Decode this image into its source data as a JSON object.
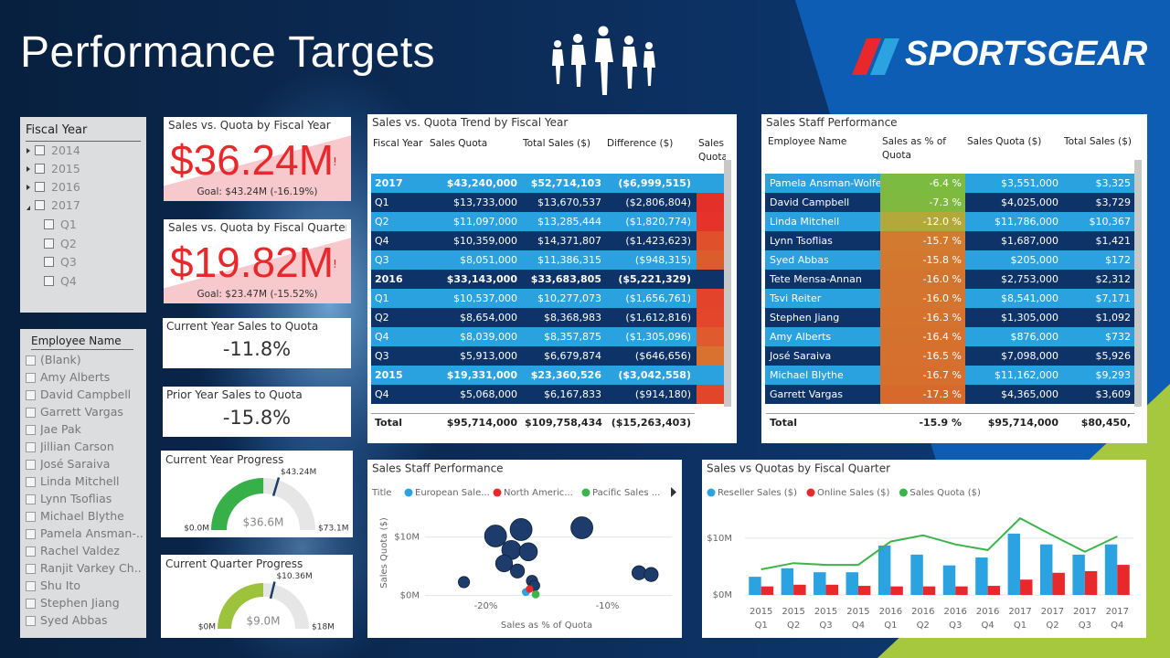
{
  "header": {
    "title": "Performance Targets",
    "logo": "SPORTSGEAR"
  },
  "fiscal_year_slicer": {
    "title": "Fiscal Year",
    "years": [
      "2014",
      "2015",
      "2016",
      "2017"
    ],
    "quarters": [
      "Q1",
      "Q2",
      "Q3",
      "Q4"
    ]
  },
  "kpi_cards": [
    {
      "title": "Sales vs. Quota by Fiscal Year",
      "value": "$36.24M",
      "flag": "!",
      "goal": "Goal: $43.24M (-16.19%)"
    },
    {
      "title": "Sales vs. Quota by Fiscal Quarter",
      "value": "$19.82M",
      "flag": "!",
      "goal": "Goal: $23.47M (-15.52%)"
    }
  ],
  "ratio_cards": [
    {
      "title": "Current Year Sales to Quota",
      "value": "-11.8%"
    },
    {
      "title": "Prior Year Sales to Quota",
      "value": "-15.8%"
    }
  ],
  "gauges": [
    {
      "title": "Current Year Progress",
      "min": 0,
      "max": 73.1,
      "value": 36.6,
      "target": 43.24,
      "min_label": "$0.0M",
      "max_label": "$73.1M",
      "value_label": "$36.6M",
      "target_label": "$43.24M",
      "color": "#37b04a"
    },
    {
      "title": "Current Quarter Progress",
      "min": 0,
      "max": 18,
      "value": 9.0,
      "target": 10.36,
      "min_label": "$0M",
      "max_label": "$18M",
      "value_label": "$9.0M",
      "target_label": "$10.36M",
      "color": "#9dc23c"
    }
  ],
  "employee_slicer": {
    "title": "Employee Name",
    "items": [
      "(Blank)",
      "Amy Alberts",
      "David Campbell",
      "Garrett Vargas",
      "Jae Pak",
      "Jillian Carson",
      "José Saraiva",
      "Linda Mitchell",
      "Lynn Tsoflias",
      "Michael Blythe",
      "Pamela Ansman-...",
      "Rachel Valdez",
      "Ranjit Varkey Ch...",
      "Shu Ito",
      "Stephen Jiang",
      "Syed Abbas"
    ]
  },
  "trend_table": {
    "title": "Sales vs. Quota Trend by Fiscal Year",
    "columns": [
      "Fiscal Year",
      "Sales Quota",
      "Total Sales ($)",
      "Difference ($)",
      "Sales Quota"
    ],
    "rows": [
      {
        "cells": [
          "2017",
          "$43,240,000",
          "$52,714,103",
          "($6,999,515)"
        ],
        "bold": true
      },
      {
        "cells": [
          "Q1",
          "$13,733,000",
          "$13,670,537",
          "($2,806,804)"
        ],
        "flag_color": "#e5302a"
      },
      {
        "cells": [
          "Q2",
          "$11,097,000",
          "$13,285,444",
          "($1,820,774)"
        ],
        "flag_color": "#e5332a"
      },
      {
        "cells": [
          "Q4",
          "$10,359,000",
          "$14,371,807",
          "($1,423,623)"
        ],
        "flag_color": "#e0502b"
      },
      {
        "cells": [
          "Q3",
          "$8,051,000",
          "$11,386,315",
          "($948,315)"
        ],
        "flag_color": "#dc5d2c"
      },
      {
        "cells": [
          "2016",
          "$33,143,000",
          "$33,683,805",
          "($5,221,329)"
        ],
        "bold": true
      },
      {
        "cells": [
          "Q1",
          "$10,537,000",
          "$10,277,073",
          "($1,656,761)"
        ],
        "flag_color": "#e3432a"
      },
      {
        "cells": [
          "Q2",
          "$8,654,000",
          "$8,368,983",
          "($1,612,816)"
        ],
        "flag_color": "#e3462a"
      },
      {
        "cells": [
          "Q4",
          "$8,039,000",
          "$8,357,875",
          "($1,305,096)"
        ],
        "flag_color": "#df5a2c"
      },
      {
        "cells": [
          "Q3",
          "$5,913,000",
          "$6,679,874",
          "($646,656)"
        ],
        "flag_color": "#d8722e"
      },
      {
        "cells": [
          "2015",
          "$19,331,000",
          "$23,360,526",
          "($3,042,558)"
        ],
        "bold": true
      },
      {
        "cells": [
          "Q4",
          "$5,068,000",
          "$6,167,833",
          "($914,180)"
        ],
        "flag_color": "#e3452a"
      }
    ],
    "total": [
      "Total",
      "$95,714,000",
      "$109,758,434",
      "($15,263,403)"
    ]
  },
  "staff_table": {
    "title": "Sales Staff Performance",
    "columns": [
      "Employee Name",
      "Sales as % of Quota",
      "Sales Quota ($)",
      "Total Sales ($)"
    ],
    "rows": [
      {
        "cells": [
          "Pamela Ansman-Wolfe",
          "-6.4 %",
          "$3,551,000",
          "$3,325"
        ],
        "pct_color": "#7cbb42"
      },
      {
        "cells": [
          "David Campbell",
          "-7.3 %",
          "$4,025,000",
          "$3,729"
        ],
        "pct_color": "#80b940"
      },
      {
        "cells": [
          "Linda Mitchell",
          "-12.0 %",
          "$11,786,000",
          "$10,367"
        ],
        "pct_color": "#b3a83a"
      },
      {
        "cells": [
          "Lynn Tsoflias",
          "-15.7 %",
          "$1,687,000",
          "$1,421"
        ],
        "pct_color": "#d17a30"
      },
      {
        "cells": [
          "Syed Abbas",
          "-15.8 %",
          "$205,000",
          "$172"
        ],
        "pct_color": "#d2782f"
      },
      {
        "cells": [
          "Tete Mensa-Annan",
          "-16.0 %",
          "$2,753,000",
          "$2,312"
        ],
        "pct_color": "#d3752f"
      },
      {
        "cells": [
          "Tsvi Reiter",
          "-16.0 %",
          "$8,541,000",
          "$7,171"
        ],
        "pct_color": "#d3752f"
      },
      {
        "cells": [
          "Stephen Jiang",
          "-16.3 %",
          "$1,305,000",
          "$1,092"
        ],
        "pct_color": "#d4722e"
      },
      {
        "cells": [
          "Amy Alberts",
          "-16.4 %",
          "$876,000",
          "$732"
        ],
        "pct_color": "#d5712e"
      },
      {
        "cells": [
          "José Saraiva",
          "-16.5 %",
          "$7,098,000",
          "$5,926"
        ],
        "pct_color": "#d5702e"
      },
      {
        "cells": [
          "Michael Blythe",
          "-16.7 %",
          "$11,162,000",
          "$9,293"
        ],
        "pct_color": "#d66e2e"
      },
      {
        "cells": [
          "Garrett Vargas",
          "-17.3 %",
          "$4,365,000",
          "$3,609"
        ],
        "pct_color": "#d8692d"
      }
    ],
    "total": [
      "Total",
      "-15.9 %",
      "$95,714,000",
      "$80,450,"
    ]
  },
  "chart_data": [
    {
      "type": "scatter",
      "title": "Sales Staff Performance",
      "legend_title": "Title",
      "x_label": "Sales as % of Quota",
      "y_label": "Sales Quota ($)",
      "xlim": [
        -25,
        -4.7
      ],
      "xticks": [
        {
          "value": -20,
          "label": "-20%"
        },
        {
          "value": -10,
          "label": "-10%"
        }
      ],
      "ylim": [
        -1,
        14.5
      ],
      "yticks": [
        {
          "value": 0,
          "label": "$0M"
        },
        {
          "value": 10,
          "label": "$10M"
        }
      ],
      "bubbles": {
        "color": "#1e3c6b",
        "x": [
          -21.8,
          -19.2,
          -17.1,
          -17.9,
          -16.5,
          -18.5,
          -17.4,
          -16.2,
          -16.0,
          -12.1,
          -7.4,
          -6.4
        ],
        "y": [
          2.3,
          10.2,
          11.3,
          7.8,
          7.5,
          5.5,
          4.2,
          2.5,
          1.7,
          11.6,
          3.9,
          3.6
        ],
        "size": [
          1.5,
          10,
          10,
          7,
          6,
          5,
          3,
          1.5,
          1.2,
          10,
          3,
          3
        ]
      },
      "series": [
        {
          "name": "European Sale...",
          "color": "#2ba3e0",
          "x": [
            -16.7
          ],
          "y": [
            0.6
          ],
          "size": [
            0.4
          ]
        },
        {
          "name": "North Americ...",
          "color": "#e8282b",
          "x": [
            -16.4
          ],
          "y": [
            1.1
          ],
          "size": [
            0.3
          ]
        },
        {
          "name": "Pacific Sales ...",
          "color": "#3cb44b",
          "x": [
            -15.9
          ],
          "y": [
            0.2
          ],
          "size": [
            0.4
          ]
        }
      ]
    },
    {
      "type": "combo",
      "title": "Sales vs Quotas by Fiscal Quarter",
      "categories": [
        [
          "2015",
          "Q1"
        ],
        [
          "2015",
          "Q2"
        ],
        [
          "2015",
          "Q3"
        ],
        [
          "2015",
          "Q4"
        ],
        [
          "2016",
          "Q1"
        ],
        [
          "2016",
          "Q2"
        ],
        [
          "2016",
          "Q3"
        ],
        [
          "2016",
          "Q4"
        ],
        [
          "2017",
          "Q1"
        ],
        [
          "2017",
          "Q2"
        ],
        [
          "2017",
          "Q3"
        ],
        [
          "2017",
          "Q4"
        ]
      ],
      "ylim": [
        0,
        14
      ],
      "yticks": [
        {
          "value": 0,
          "label": "$0M"
        },
        {
          "value": 10,
          "label": "$10M"
        }
      ],
      "series": [
        {
          "name": "Reseller Sales ($)",
          "color": "#2ba3e0",
          "kind": "bar",
          "values": [
            3.2,
            4.7,
            4.0,
            4.0,
            8.7,
            7.1,
            5.2,
            6.6,
            10.8,
            8.9,
            7.1,
            8.9
          ]
        },
        {
          "name": "Online Sales ($)",
          "color": "#e8282b",
          "kind": "bar",
          "values": [
            1.5,
            1.8,
            1.8,
            1.6,
            1.5,
            1.5,
            1.5,
            1.6,
            2.7,
            3.9,
            4.2,
            5.3
          ]
        },
        {
          "name": "Sales Quota ($)",
          "color": "#3cb44b",
          "kind": "line",
          "values": [
            4.5,
            5.6,
            5.3,
            5.3,
            9.4,
            10.5,
            8.9,
            7.9,
            13.5,
            10.5,
            7.6,
            10.3
          ]
        }
      ]
    }
  ]
}
